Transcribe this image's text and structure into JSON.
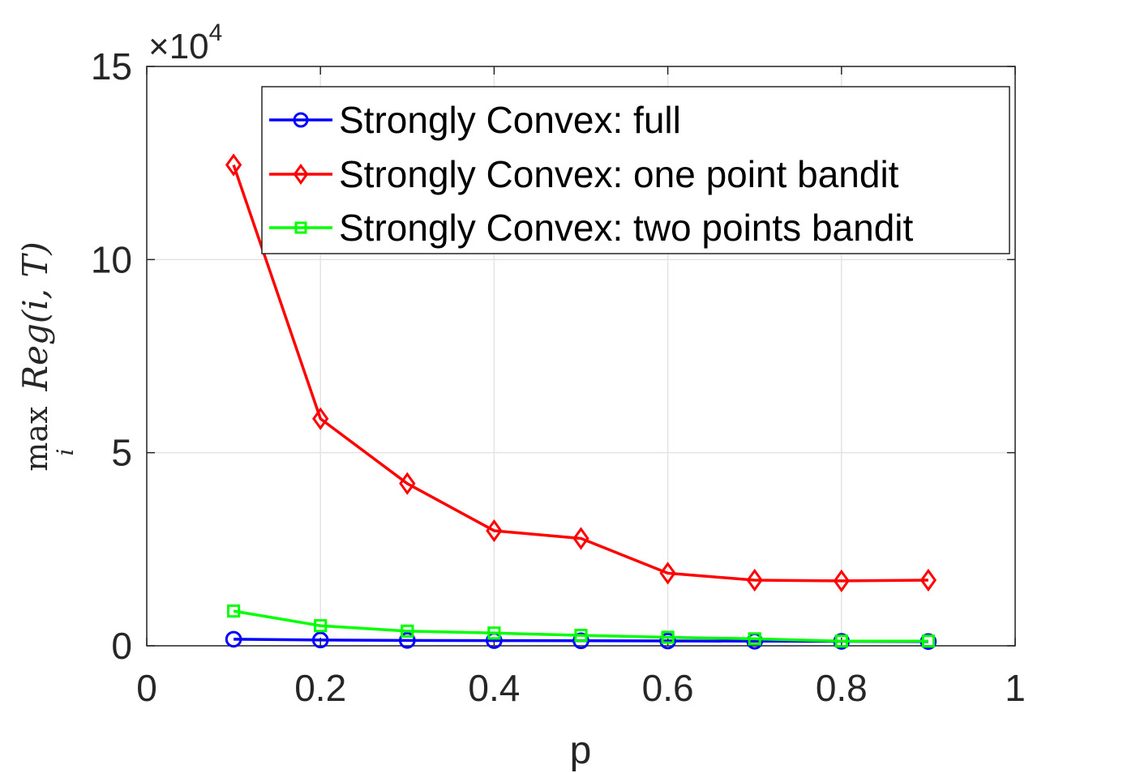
{
  "chart_data": {
    "type": "line",
    "x": [
      0.1,
      0.2,
      0.3,
      0.4,
      0.5,
      0.6,
      0.7,
      0.8,
      0.9
    ],
    "series": [
      {
        "name": "Strongly Convex: full",
        "color": "#0000ff",
        "marker": "circle",
        "values": [
          1700,
          1500,
          1400,
          1350,
          1300,
          1250,
          1200,
          1150,
          1100
        ]
      },
      {
        "name": "Strongly Convex: one point bandit",
        "color": "#ff0000",
        "marker": "diamond",
        "values": [
          124500,
          58800,
          42000,
          29800,
          27800,
          18800,
          17000,
          16800,
          17000
        ]
      },
      {
        "name": "Strongly Convex: two points bandit",
        "color": "#00ff00",
        "marker": "square",
        "values": [
          9000,
          5200,
          3800,
          3300,
          2700,
          2200,
          1800,
          1200,
          1200
        ]
      }
    ],
    "xlabel": "p",
    "ylabel": {
      "operator": "max",
      "subscript": "i",
      "expression": "Reg(i, T)"
    },
    "xlim": [
      0,
      1
    ],
    "ylim": [
      0,
      150000
    ],
    "xticks": [
      "0",
      "0.2",
      "0.4",
      "0.6",
      "0.8",
      "1"
    ],
    "yticks": [
      "0",
      "5",
      "10",
      "15"
    ],
    "yexponent": {
      "base": "×10",
      "power": "4"
    },
    "grid": true,
    "legend_position": "top-right"
  }
}
